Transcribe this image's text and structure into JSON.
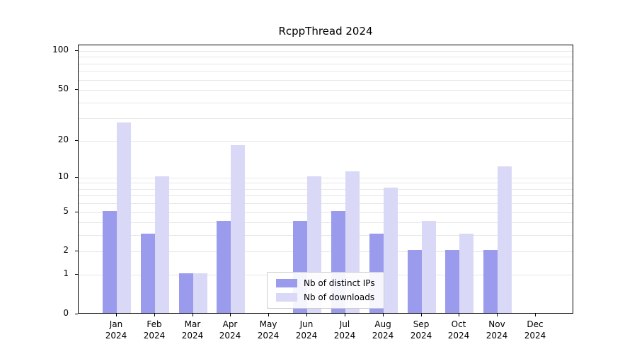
{
  "chart_data": {
    "type": "bar",
    "title": "RcppThread 2024",
    "scale": "log1p",
    "categories": [
      "Jan",
      "Feb",
      "Mar",
      "Apr",
      "May",
      "Jun",
      "Jul",
      "Aug",
      "Sep",
      "Oct",
      "Nov",
      "Dec"
    ],
    "year_label": "2024",
    "series": [
      {
        "name": "Nb of distinct IPs",
        "color": "#9b9bee",
        "values": [
          5,
          3,
          1,
          4,
          0,
          4,
          5,
          3,
          2,
          2,
          2,
          0
        ]
      },
      {
        "name": "Nb of downloads",
        "color": "#d9d9f7",
        "values": [
          27,
          10,
          1,
          18,
          0,
          10,
          11,
          8,
          4,
          3,
          12,
          0
        ]
      }
    ],
    "yticks": [
      0,
      1,
      2,
      5,
      10,
      20,
      50,
      100
    ],
    "gridline_values": [
      1,
      2,
      3,
      4,
      5,
      6,
      7,
      8,
      9,
      10,
      20,
      30,
      40,
      50,
      60,
      70,
      80,
      90,
      100
    ],
    "ylim": [
      0,
      110
    ],
    "grid": "on",
    "legend_position": "bottom-center",
    "colors": {
      "grid": "#e7e7e7",
      "axis": "#000000",
      "legend_border": "#cccccc"
    }
  }
}
